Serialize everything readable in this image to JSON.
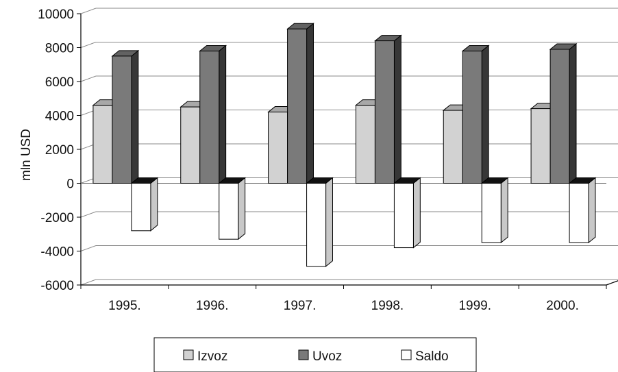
{
  "chart_data": {
    "type": "bar",
    "categories": [
      "1995.",
      "1996.",
      "1997.",
      "1998.",
      "1999.",
      "2000."
    ],
    "series": [
      {
        "name": "Izvoz",
        "values": [
          4600,
          4500,
          4200,
          4600,
          4300,
          4400
        ],
        "color": "#d2d2d2"
      },
      {
        "name": "Uvoz",
        "values": [
          7500,
          7800,
          9100,
          8400,
          7800,
          7900
        ],
        "color": "#7a7a7a"
      },
      {
        "name": "Saldo",
        "values": [
          -2800,
          -3300,
          -4900,
          -3800,
          -3500,
          -3500
        ],
        "color": "#ffffff"
      }
    ],
    "ylabel": "mln USD",
    "ylim": [
      -6000,
      10000
    ],
    "yticks": [
      "10000",
      "8000",
      "6000",
      "4000",
      "2000",
      "0",
      "-2000",
      "-4000",
      "-6000"
    ],
    "grid": true,
    "legend": "bottom",
    "style": "3d-bar"
  }
}
